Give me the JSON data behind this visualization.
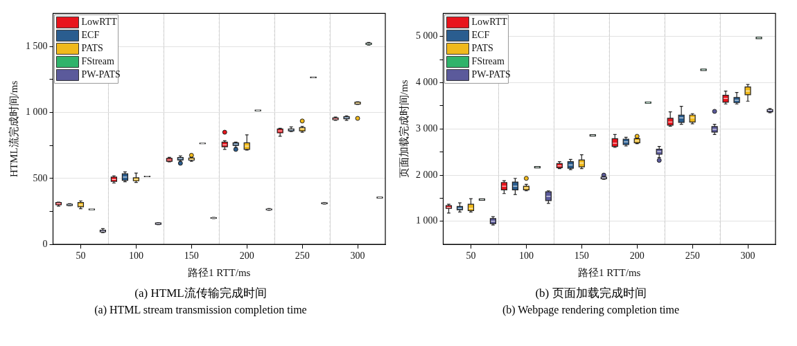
{
  "chart_data": [
    {
      "type": "box",
      "title": "(a) HTML流传输完成时间",
      "subtitle": "(a) HTML stream transmission completion time",
      "xlabel": "路径1 RTT/ms",
      "ylabel": "HTML流完成时间/ms",
      "xlim": [
        25,
        325
      ],
      "ylim": [
        0,
        1750
      ],
      "xticks": [
        50,
        {
          "value": 75,
          "label": null
        },
        100,
        {
          "value": 125,
          "label": null
        },
        150,
        {
          "value": 175,
          "label": null
        },
        200,
        {
          "value": 225,
          "label": null
        },
        250,
        {
          "value": 275,
          "label": null
        },
        300
      ],
      "yticks": [
        0,
        {
          "value": 250,
          "label": null
        },
        500,
        {
          "value": 750,
          "label": null
        },
        {
          "value": 1000,
          "label": "1 000"
        },
        {
          "value": 1250,
          "label": null
        },
        {
          "value": 1500,
          "label": "1 500"
        }
      ],
      "grid": true,
      "legend": "top left",
      "series": [
        {
          "name": "LowRTT",
          "color": "#e8141c",
          "x": [
            30,
            80,
            130,
            180,
            230,
            280
          ],
          "boxes": [
            {
              "low": 290,
              "q1": 300,
              "median": 310,
              "q3": 318,
              "high": 320
            },
            {
              "low": 465,
              "q1": 478,
              "median": 492,
              "q3": 510,
              "high": 520
            },
            {
              "low": 625,
              "q1": 630,
              "median": 640,
              "q3": 652,
              "high": 660
            },
            {
              "low": 720,
              "q1": 740,
              "median": 755,
              "q3": 775,
              "high": 785,
              "outliers": [
                850
              ]
            },
            {
              "low": 820,
              "q1": 845,
              "median": 860,
              "q3": 875,
              "high": 880
            },
            {
              "low": 940,
              "q1": 945,
              "median": 950,
              "q3": 958,
              "high": 965
            }
          ]
        },
        {
          "name": "ECF",
          "color": "#2a5d8f",
          "x": [
            40,
            90,
            140,
            190,
            240,
            290
          ],
          "boxes": [
            {
              "low": 292,
              "q1": 295,
              "median": 300,
              "q3": 305,
              "high": 308
            },
            {
              "low": 475,
              "q1": 485,
              "median": 510,
              "q3": 535,
              "high": 550
            },
            {
              "low": 630,
              "q1": 640,
              "median": 650,
              "q3": 658,
              "high": 670,
              "outliers": [
                615
              ]
            },
            {
              "low": 735,
              "q1": 750,
              "median": 760,
              "q3": 770,
              "high": 775,
              "outliers": [
                720
              ]
            },
            {
              "low": 855,
              "q1": 860,
              "median": 868,
              "q3": 875,
              "high": 890
            },
            {
              "low": 940,
              "q1": 952,
              "median": 960,
              "q3": 968,
              "high": 975
            }
          ]
        },
        {
          "name": "PATS",
          "color": "#f0b91c",
          "x": [
            50,
            100,
            150,
            200,
            250,
            300
          ],
          "boxes": [
            {
              "low": 270,
              "q1": 285,
              "median": 300,
              "q3": 318,
              "high": 330
            },
            {
              "low": 470,
              "q1": 482,
              "median": 493,
              "q3": 505,
              "high": 540
            },
            {
              "low": 630,
              "q1": 638,
              "median": 645,
              "q3": 655,
              "high": 660,
              "outliers": [
                675
              ]
            },
            {
              "low": 715,
              "q1": 720,
              "median": 745,
              "q3": 770,
              "high": 830
            },
            {
              "low": 850,
              "q1": 860,
              "median": 875,
              "q3": 885,
              "high": 895,
              "outliers": [
                935
              ]
            },
            {
              "low": 1060,
              "q1": 1063,
              "median": 1070,
              "q3": 1078,
              "high": 1080,
              "outliers": [
                955
              ]
            }
          ]
        },
        {
          "name": "FStream",
          "color": "#2fb36a",
          "x": [
            60,
            110,
            160,
            210,
            260,
            310
          ],
          "boxes": [
            {
              "low": 262,
              "q1": 262,
              "median": 265,
              "q3": 268,
              "high": 268
            },
            {
              "low": 513,
              "q1": 513,
              "median": 515,
              "q3": 517,
              "high": 517
            },
            {
              "low": 763,
              "q1": 763,
              "median": 765,
              "q3": 767,
              "high": 767
            },
            {
              "low": 1012,
              "q1": 1012,
              "median": 1015,
              "q3": 1018,
              "high": 1018
            },
            {
              "low": 1262,
              "q1": 1262,
              "median": 1265,
              "q3": 1268,
              "high": 1268
            },
            {
              "low": 1510,
              "q1": 1515,
              "median": 1520,
              "q3": 1525,
              "high": 1530
            }
          ]
        },
        {
          "name": "PW-PATS",
          "color": "#5b5a9b",
          "x": [
            70,
            120,
            170,
            220,
            270,
            320
          ],
          "boxes": [
            {
              "low": 90,
              "q1": 95,
              "median": 100,
              "q3": 108,
              "high": 120
            },
            {
              "low": 150,
              "q1": 152,
              "median": 158,
              "q3": 163,
              "high": 165
            },
            {
              "low": 195,
              "q1": 198,
              "median": 200,
              "q3": 202,
              "high": 205
            },
            {
              "low": 258,
              "q1": 262,
              "median": 265,
              "q3": 268,
              "high": 272
            },
            {
              "low": 305,
              "q1": 308,
              "median": 312,
              "q3": 315,
              "high": 318
            },
            {
              "low": 352,
              "q1": 352,
              "median": 355,
              "q3": 358,
              "high": 358
            }
          ]
        }
      ]
    },
    {
      "type": "box",
      "title": "(b) 页面加载完成时间",
      "subtitle": "(b) Webpage rendering completion time",
      "xlabel": "路径1 RTT/ms",
      "ylabel": "页面加载完成时间/ms",
      "xlim": [
        25,
        325
      ],
      "ylim": [
        500,
        5500
      ],
      "xticks": [
        50,
        {
          "value": 75,
          "label": null
        },
        100,
        {
          "value": 125,
          "label": null
        },
        150,
        {
          "value": 175,
          "label": null
        },
        200,
        {
          "value": 225,
          "label": null
        },
        250,
        {
          "value": 275,
          "label": null
        },
        300
      ],
      "yticks": [
        {
          "value": 1000,
          "label": "1 000"
        },
        {
          "value": 1500,
          "label": null
        },
        {
          "value": 2000,
          "label": "2 000"
        },
        {
          "value": 2500,
          "label": null
        },
        {
          "value": 3000,
          "label": "3 000"
        },
        {
          "value": 3500,
          "label": null
        },
        {
          "value": 4000,
          "label": "4 000"
        },
        {
          "value": 4500,
          "label": null
        },
        {
          "value": 5000,
          "label": "5 000"
        }
      ],
      "grid": true,
      "legend": "top left",
      "series": [
        {
          "name": "LowRTT",
          "color": "#e8141c",
          "x": [
            30,
            80,
            130,
            180,
            230,
            280
          ],
          "boxes": [
            {
              "low": 1180,
              "q1": 1280,
              "median": 1300,
              "q3": 1340,
              "high": 1370
            },
            {
              "low": 1600,
              "q1": 1680,
              "median": 1760,
              "q3": 1840,
              "high": 1880
            },
            {
              "low": 2140,
              "q1": 2160,
              "median": 2200,
              "q3": 2250,
              "high": 2290
            },
            {
              "low": 2600,
              "q1": 2620,
              "median": 2690,
              "q3": 2790,
              "high": 2880
            },
            {
              "low": 3060,
              "q1": 3080,
              "median": 3150,
              "q3": 3230,
              "high": 3370
            },
            {
              "low": 3540,
              "q1": 3580,
              "median": 3660,
              "q3": 3730,
              "high": 3820
            }
          ]
        },
        {
          "name": "ECF",
          "color": "#2a5d8f",
          "x": [
            40,
            90,
            140,
            190,
            240,
            290
          ],
          "boxes": [
            {
              "low": 1200,
              "q1": 1250,
              "median": 1280,
              "q3": 1320,
              "high": 1400
            },
            {
              "low": 1580,
              "q1": 1680,
              "median": 1760,
              "q3": 1850,
              "high": 1930
            },
            {
              "low": 2120,
              "q1": 2150,
              "median": 2220,
              "q3": 2290,
              "high": 2340
            },
            {
              "low": 2630,
              "q1": 2660,
              "median": 2720,
              "q3": 2780,
              "high": 2820
            },
            {
              "low": 3100,
              "q1": 3140,
              "median": 3240,
              "q3": 3300,
              "high": 3490
            },
            {
              "low": 3540,
              "q1": 3570,
              "median": 3620,
              "q3": 3680,
              "high": 3790
            }
          ]
        },
        {
          "name": "PATS",
          "color": "#f0b91c",
          "x": [
            50,
            100,
            150,
            200,
            250,
            300
          ],
          "boxes": [
            {
              "low": 1200,
              "q1": 1230,
              "median": 1280,
              "q3": 1370,
              "high": 1490
            },
            {
              "low": 1660,
              "q1": 1680,
              "median": 1720,
              "q3": 1760,
              "high": 1800,
              "outliers": [
                1930
              ]
            },
            {
              "low": 2140,
              "q1": 2180,
              "median": 2260,
              "q3": 2330,
              "high": 2440
            },
            {
              "low": 2680,
              "q1": 2700,
              "median": 2740,
              "q3": 2790,
              "high": 2800,
              "outliers": [
                2840
              ]
            },
            {
              "low": 3110,
              "q1": 3150,
              "median": 3240,
              "q3": 3300,
              "high": 3330
            },
            {
              "low": 3600,
              "q1": 3740,
              "median": 3820,
              "q3": 3910,
              "high": 3960
            }
          ]
        },
        {
          "name": "FStream",
          "color": "#2fb36a",
          "x": [
            60,
            110,
            160,
            210,
            260,
            310
          ],
          "boxes": [
            {
              "low": 1455,
              "q1": 1455,
              "median": 1470,
              "q3": 1485,
              "high": 1485
            },
            {
              "low": 2155,
              "q1": 2155,
              "median": 2170,
              "q3": 2185,
              "high": 2185
            },
            {
              "low": 2845,
              "q1": 2845,
              "median": 2860,
              "q3": 2875,
              "high": 2875
            },
            {
              "low": 3555,
              "q1": 3555,
              "median": 3570,
              "q3": 3585,
              "high": 3585
            },
            {
              "low": 4265,
              "q1": 4265,
              "median": 4280,
              "q3": 4295,
              "high": 4295
            },
            {
              "low": 4955,
              "q1": 4955,
              "median": 4970,
              "q3": 4985,
              "high": 4985
            }
          ]
        },
        {
          "name": "PW-PATS",
          "color": "#5b5a9b",
          "x": [
            70,
            120,
            170,
            220,
            270,
            320
          ],
          "boxes": [
            {
              "low": 920,
              "q1": 950,
              "median": 1000,
              "q3": 1060,
              "high": 1100
            },
            {
              "low": 1390,
              "q1": 1450,
              "median": 1540,
              "q3": 1640,
              "high": 1660
            },
            {
              "low": 1910,
              "q1": 1920,
              "median": 1940,
              "q3": 1960,
              "high": 1970,
              "outliers": [
                2000
              ]
            },
            {
              "low": 2380,
              "q1": 2450,
              "median": 2510,
              "q3": 2560,
              "high": 2620,
              "outliers": [
                2320
              ]
            },
            {
              "low": 2880,
              "q1": 2930,
              "median": 2990,
              "q3": 3050,
              "high": 3100,
              "outliers": [
                3380
              ]
            },
            {
              "low": 3350,
              "q1": 3370,
              "median": 3400,
              "q3": 3420,
              "high": 3440
            }
          ]
        }
      ]
    }
  ]
}
